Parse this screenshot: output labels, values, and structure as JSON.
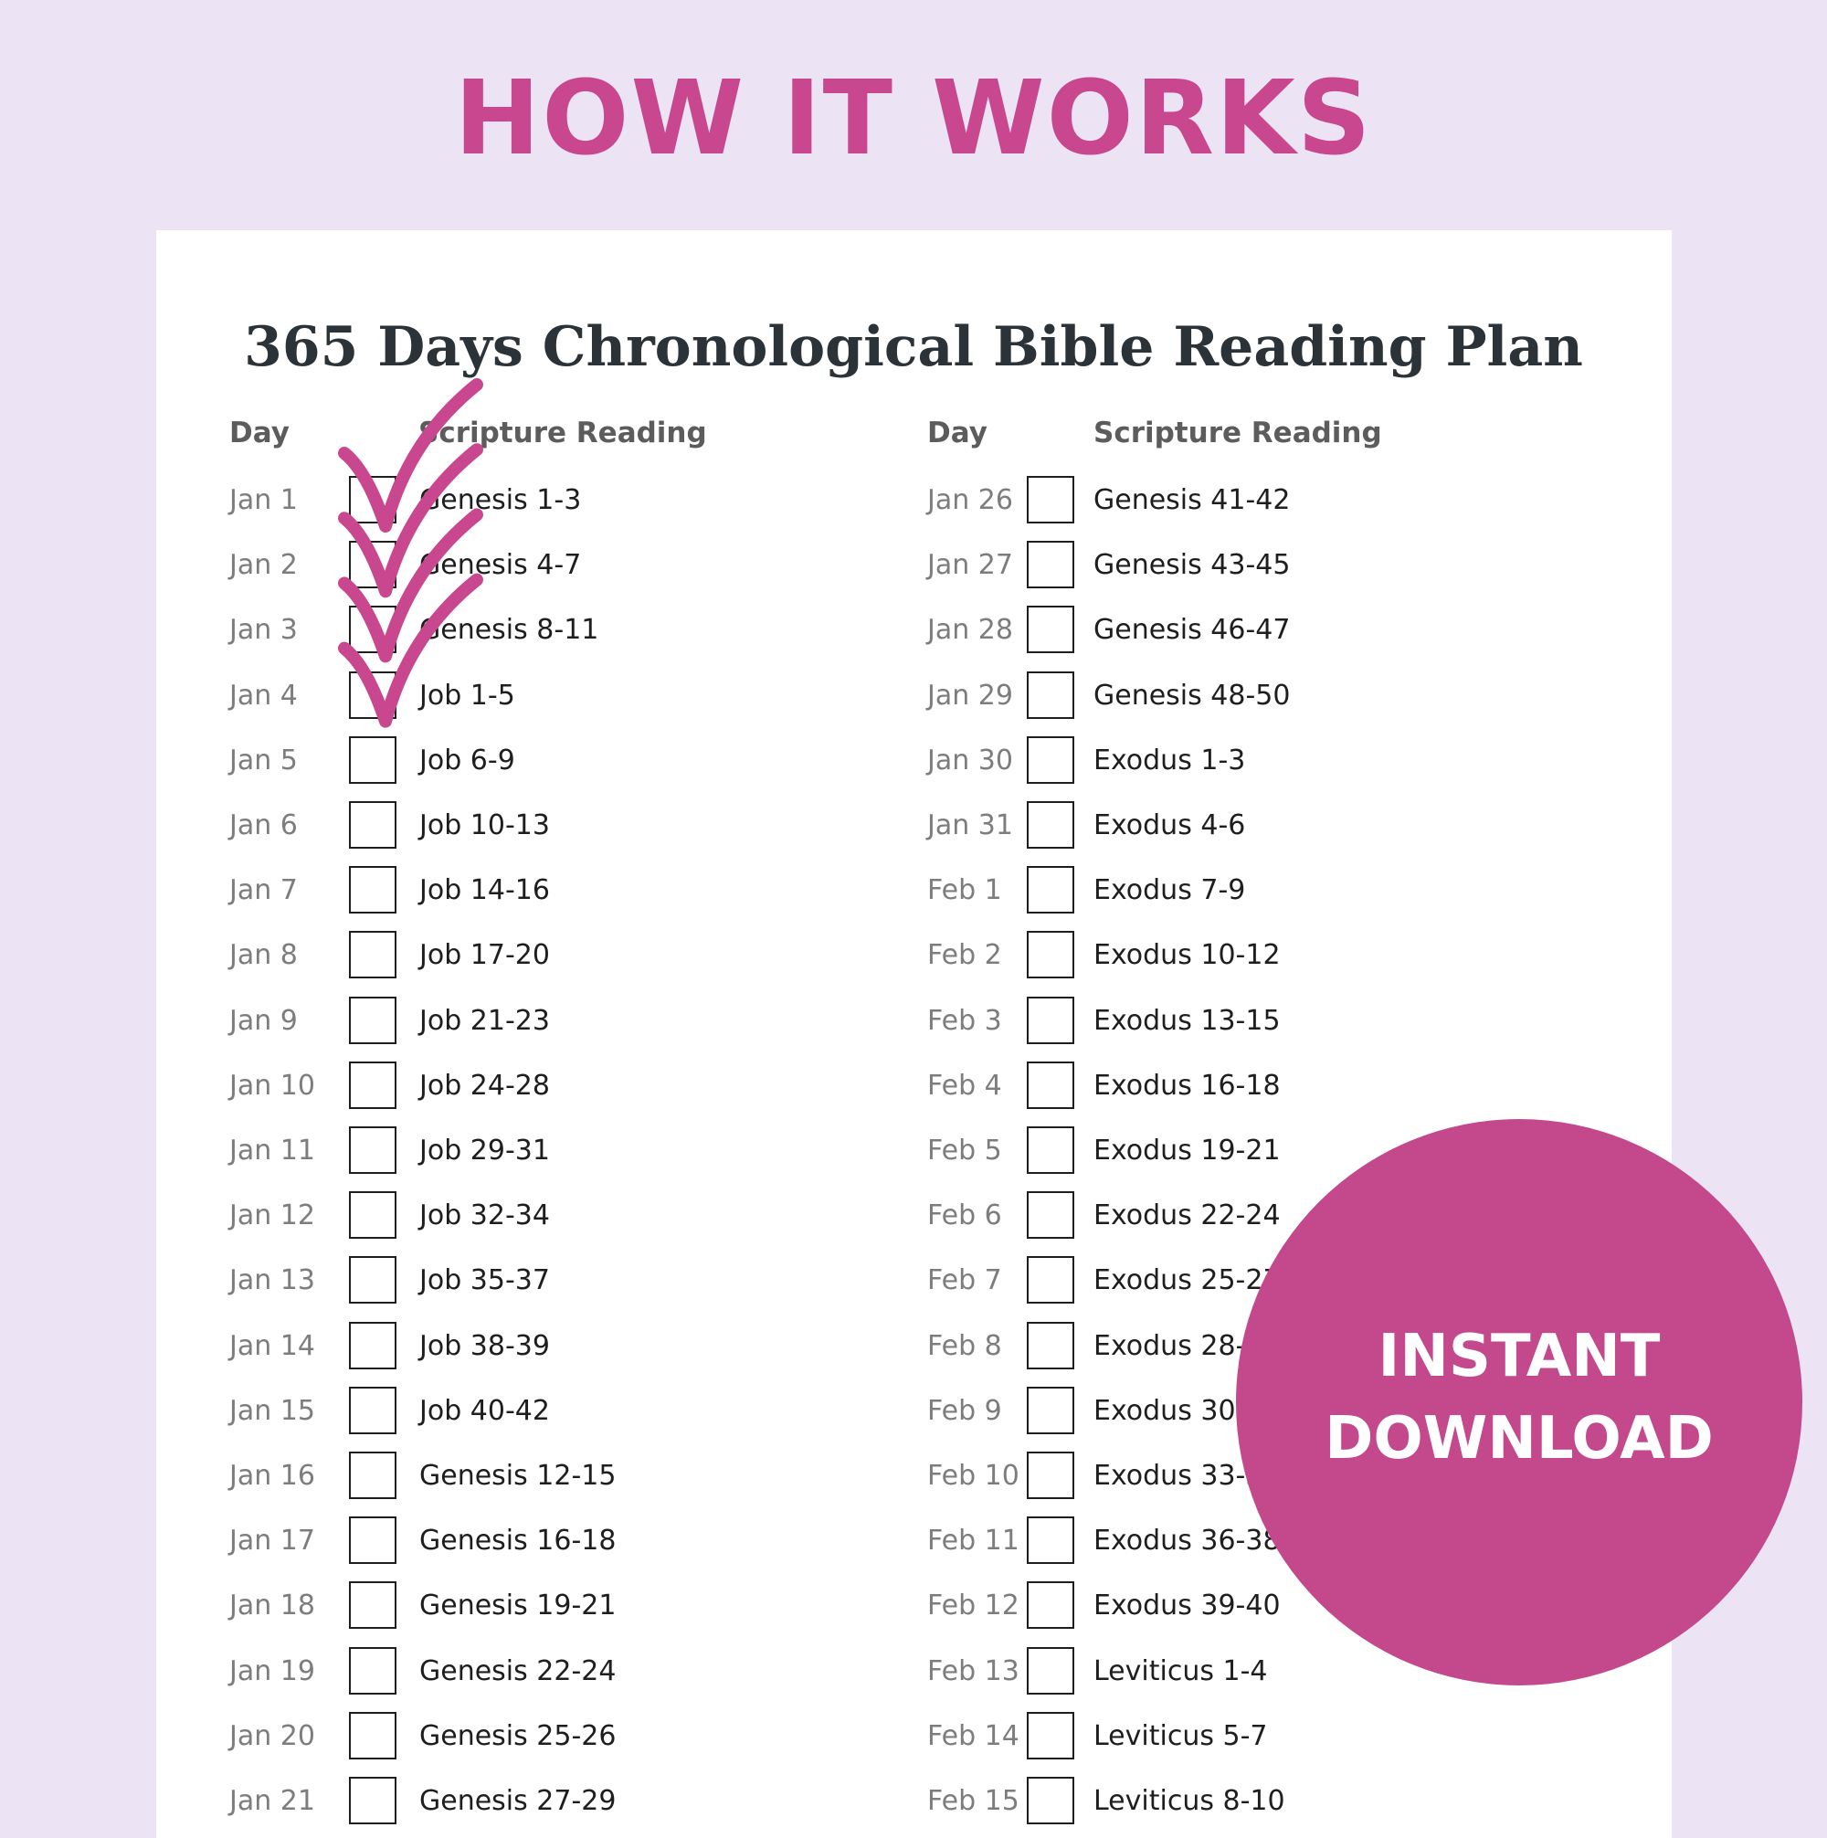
{
  "headline": "HOW IT WORKS",
  "plan_title": "365 Days Chronological Bible Reading Plan",
  "columns": [
    {
      "day_header": "Day",
      "reading_header": "Scripture Reading",
      "rows": [
        {
          "day": "Jan 1",
          "reading": "Genesis 1-3",
          "checked": true
        },
        {
          "day": "Jan 2",
          "reading": "Genesis 4-7",
          "checked": true
        },
        {
          "day": "Jan 3",
          "reading": "Genesis 8-11",
          "checked": true
        },
        {
          "day": "Jan 4",
          "reading": "Job 1-5",
          "checked": true
        },
        {
          "day": "Jan 5",
          "reading": "Job 6-9",
          "checked": false
        },
        {
          "day": "Jan 6",
          "reading": "Job 10-13",
          "checked": false
        },
        {
          "day": "Jan 7",
          "reading": "Job 14-16",
          "checked": false
        },
        {
          "day": "Jan 8",
          "reading": "Job 17-20",
          "checked": false
        },
        {
          "day": "Jan 9",
          "reading": "Job 21-23",
          "checked": false
        },
        {
          "day": "Jan 10",
          "reading": "Job 24-28",
          "checked": false
        },
        {
          "day": "Jan 11",
          "reading": "Job 29-31",
          "checked": false
        },
        {
          "day": "Jan 12",
          "reading": "Job 32-34",
          "checked": false
        },
        {
          "day": "Jan 13",
          "reading": "Job 35-37",
          "checked": false
        },
        {
          "day": "Jan 14",
          "reading": "Job 38-39",
          "checked": false
        },
        {
          "day": "Jan 15",
          "reading": "Job 40-42",
          "checked": false
        },
        {
          "day": "Jan 16",
          "reading": "Genesis 12-15",
          "checked": false
        },
        {
          "day": "Jan 17",
          "reading": "Genesis 16-18",
          "checked": false
        },
        {
          "day": "Jan 18",
          "reading": "Genesis 19-21",
          "checked": false
        },
        {
          "day": "Jan 19",
          "reading": "Genesis 22-24",
          "checked": false
        },
        {
          "day": "Jan 20",
          "reading": "Genesis 25-26",
          "checked": false
        },
        {
          "day": "Jan 21",
          "reading": "Genesis 27-29",
          "checked": false
        }
      ]
    },
    {
      "day_header": "Day",
      "reading_header": "Scripture Reading",
      "rows": [
        {
          "day": "Jan 26",
          "reading": "Genesis 41-42",
          "checked": false
        },
        {
          "day": "Jan 27",
          "reading": "Genesis 43-45",
          "checked": false
        },
        {
          "day": "Jan 28",
          "reading": "Genesis 46-47",
          "checked": false
        },
        {
          "day": "Jan 29",
          "reading": "Genesis 48-50",
          "checked": false
        },
        {
          "day": "Jan 30",
          "reading": "Exodus 1-3",
          "checked": false
        },
        {
          "day": "Jan 31",
          "reading": "Exodus 4-6",
          "checked": false
        },
        {
          "day": "Feb 1",
          "reading": "Exodus 7-9",
          "checked": false
        },
        {
          "day": "Feb 2",
          "reading": "Exodus 10-12",
          "checked": false
        },
        {
          "day": "Feb 3",
          "reading": "Exodus 13-15",
          "checked": false
        },
        {
          "day": "Feb 4",
          "reading": "Exodus 16-18",
          "checked": false
        },
        {
          "day": "Feb 5",
          "reading": "Exodus 19-21",
          "checked": false
        },
        {
          "day": "Feb 6",
          "reading": "Exodus 22-24",
          "checked": false
        },
        {
          "day": "Feb 7",
          "reading": "Exodus 25-27",
          "checked": false
        },
        {
          "day": "Feb 8",
          "reading": "Exodus 28-29",
          "checked": false
        },
        {
          "day": "Feb 9",
          "reading": "Exodus 30-32",
          "checked": false
        },
        {
          "day": "Feb 10",
          "reading": "Exodus 33-35",
          "checked": false
        },
        {
          "day": "Feb 11",
          "reading": "Exodus 36-38",
          "checked": false
        },
        {
          "day": "Feb 12",
          "reading": "Exodus 39-40",
          "checked": false
        },
        {
          "day": "Feb 13",
          "reading": "Leviticus 1-4",
          "checked": false
        },
        {
          "day": "Feb 14",
          "reading": "Leviticus 5-7",
          "checked": false
        },
        {
          "day": "Feb 15",
          "reading": "Leviticus 8-10",
          "checked": false
        }
      ]
    }
  ],
  "badge": {
    "line1": "INSTANT",
    "line2": "DOWNLOAD"
  },
  "colors": {
    "background": "#ece3f4",
    "accent": "#c8478e",
    "badge": "#c4488c",
    "title": "#2c3338"
  }
}
